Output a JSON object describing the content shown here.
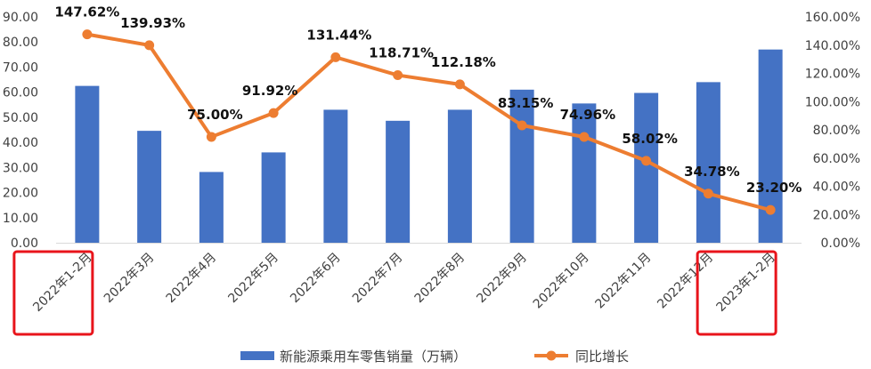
{
  "chart_data": {
    "type": "bar",
    "categories": [
      "2022年1-2月",
      "2022年3月",
      "2022年4月",
      "2022年5月",
      "2022年6月",
      "2022年7月",
      "2022年8月",
      "2022年9月",
      "2022年10月",
      "2022年11月",
      "2022年12月",
      "2023年1-2月"
    ],
    "series": [
      {
        "name": "新能源乘用车零售销量（万辆）",
        "type": "bar",
        "axis": "left",
        "color": "#4472C4",
        "values": [
          62.5,
          44.6,
          28.2,
          36.0,
          53.0,
          48.6,
          53.0,
          61.0,
          55.5,
          59.7,
          64.0,
          77.0
        ]
      },
      {
        "name": "同比增长",
        "type": "line",
        "axis": "right",
        "color": "#ED7D31",
        "values": [
          147.62,
          139.93,
          75.0,
          91.92,
          131.44,
          118.71,
          112.18,
          83.15,
          74.96,
          58.02,
          34.78,
          23.2
        ],
        "labels": [
          "147.62%",
          "139.93%",
          "75.00%",
          "91.92%",
          "131.44%",
          "118.71%",
          "112.18%",
          "83.15%",
          "74.96%",
          "58.02%",
          "34.78%",
          "23.20%"
        ]
      }
    ],
    "y_left": {
      "range": [
        0,
        90
      ],
      "ticks": [
        0,
        10,
        20,
        30,
        40,
        50,
        60,
        70,
        80,
        90
      ],
      "tick_labels": [
        "0.00",
        "10.00",
        "20.00",
        "30.00",
        "40.00",
        "50.00",
        "60.00",
        "70.00",
        "80.00",
        "90.00"
      ]
    },
    "y_right": {
      "range": [
        0,
        160
      ],
      "ticks": [
        0,
        20,
        40,
        60,
        80,
        100,
        120,
        140,
        160
      ],
      "tick_labels": [
        "0.00%",
        "20.00%",
        "40.00%",
        "60.00%",
        "80.00%",
        "100.00%",
        "120.00%",
        "140.00%",
        "160.00%"
      ]
    },
    "grid": false,
    "legend": "bottom",
    "highlight_boxes": {
      "color": "#E8141B",
      "category_indices": [
        0,
        11
      ]
    }
  }
}
